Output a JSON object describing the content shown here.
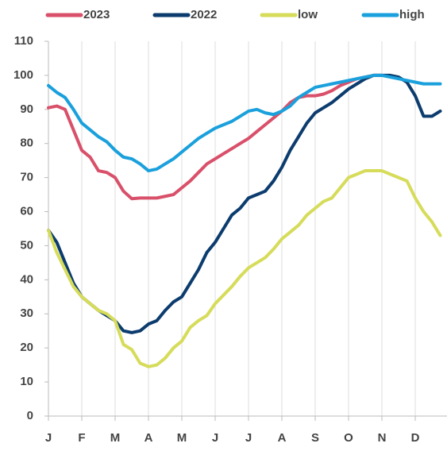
{
  "chart_data": {
    "type": "line",
    "categories": [
      "J",
      null,
      null,
      null,
      "F",
      null,
      null,
      null,
      "M",
      null,
      null,
      null,
      "A",
      null,
      null,
      null,
      "M",
      null,
      null,
      null,
      "J",
      null,
      null,
      null,
      "J",
      null,
      null,
      null,
      "A",
      null,
      null,
      null,
      "S",
      null,
      null,
      null,
      "O",
      null,
      null,
      null,
      "N",
      null,
      null,
      null,
      "D",
      null,
      null,
      null
    ],
    "series": [
      {
        "name": "2023",
        "color": "#d9506a",
        "values": [
          90.5,
          91,
          90,
          84,
          78,
          76,
          72,
          71.5,
          70,
          66,
          63.8,
          64,
          64,
          64,
          64.5,
          65,
          67,
          69,
          71.5,
          74,
          75.5,
          77,
          78.5,
          80,
          81.5,
          83.5,
          85.5,
          87.5,
          89.5,
          92,
          93.5,
          94,
          94,
          94.5,
          95.5,
          97,
          98,
          99,
          99.5,
          100,
          100,
          null,
          null,
          null,
          null,
          null,
          null,
          null
        ]
      },
      {
        "name": "2022",
        "color": "#0c3c6e",
        "values": [
          54.5,
          51,
          45,
          39,
          35,
          33,
          31,
          29.5,
          28,
          25,
          24.5,
          25,
          27,
          28,
          31,
          33.5,
          35,
          39,
          43,
          48,
          51,
          55,
          59,
          61,
          64,
          65,
          66,
          69,
          73,
          78,
          82,
          86,
          89,
          90.5,
          92,
          94,
          96,
          97.5,
          99,
          100,
          100,
          100,
          99.5,
          98,
          94,
          88,
          88,
          89.5
        ]
      },
      {
        "name": "low",
        "color": "#d6dc5a",
        "values": [
          54.5,
          48,
          43,
          38,
          35,
          33,
          31,
          30,
          28,
          21,
          19.5,
          15.5,
          14.5,
          15,
          17,
          20,
          22,
          26,
          28,
          29.5,
          33,
          35.5,
          38,
          41,
          43.5,
          45,
          46.5,
          49,
          52,
          54,
          56,
          59,
          61,
          63,
          64,
          67,
          70,
          71,
          72,
          72,
          72,
          71,
          70,
          69,
          64,
          60,
          57,
          53
        ]
      },
      {
        "name": "high",
        "color": "#1aa0dc",
        "values": [
          97,
          95,
          93.5,
          90,
          86,
          84,
          82,
          80.5,
          78,
          76,
          75.5,
          74,
          72,
          72.5,
          74,
          75.5,
          77.5,
          79.5,
          81.5,
          83,
          84.5,
          85.5,
          86.5,
          88,
          89.5,
          90,
          89,
          88.5,
          89.5,
          91,
          93.5,
          95,
          96.5,
          97,
          97.5,
          98,
          98.5,
          99,
          99.5,
          100,
          100,
          99.5,
          99,
          98.5,
          98,
          97.5,
          97.5,
          97.5
        ]
      }
    ],
    "ylim": [
      0,
      110
    ],
    "yticks": [
      0,
      10,
      20,
      30,
      40,
      50,
      60,
      70,
      80,
      90,
      100,
      110
    ],
    "legend": "top",
    "grid": "x"
  }
}
